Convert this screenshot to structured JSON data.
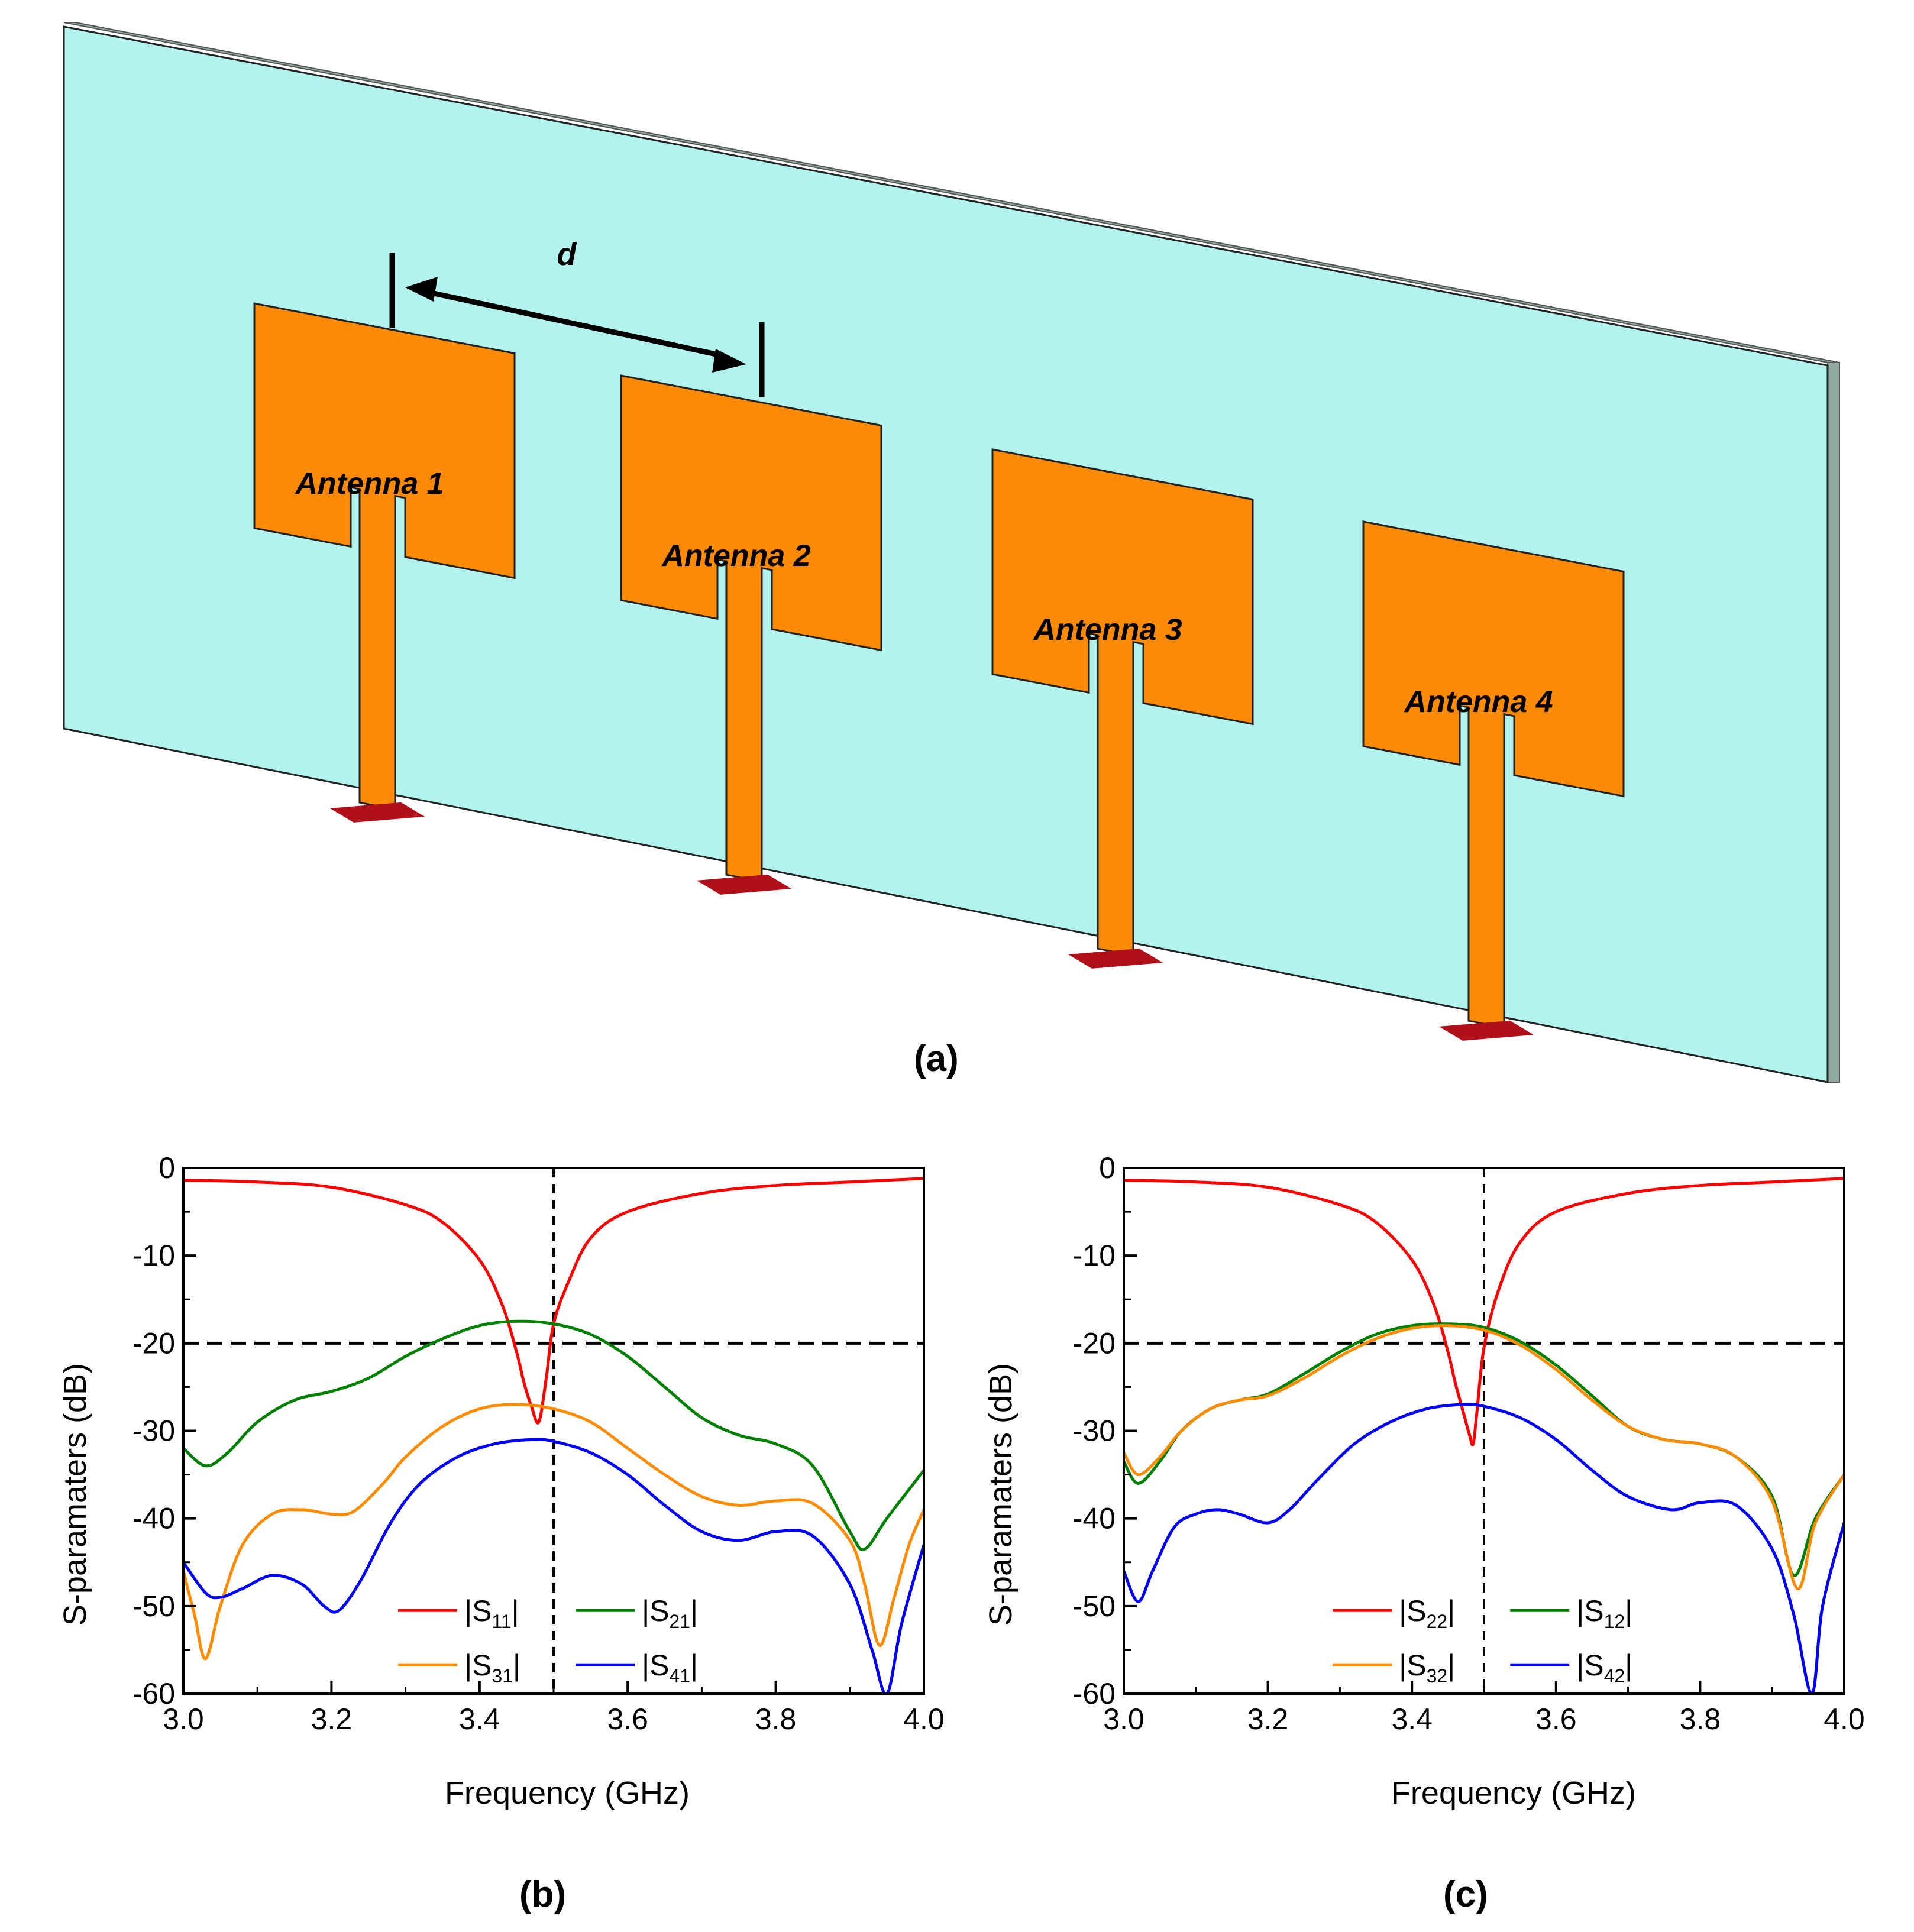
{
  "panel_a": {
    "label": "(a)",
    "dimension_label": "d",
    "antenna_labels": [
      "Antenna 1",
      "Antenna 2",
      "Antenna 3",
      "Antenna 4"
    ],
    "colors": {
      "substrate": "#b3f3ee",
      "patch": "#fb8b06",
      "port": "#b0101a"
    }
  },
  "panel_b_label": "(b)",
  "panel_c_label": "(c)",
  "chart_data": [
    {
      "type": "line",
      "panel": "b",
      "xlabel": "Frequency (GHz)",
      "ylabel": "S-paramaters (dB)",
      "xlim": [
        3.0,
        4.0
      ],
      "ylim": [
        -60,
        0
      ],
      "xticks": [
        "3.0",
        "3.2",
        "3.4",
        "3.6",
        "3.8",
        "4.0"
      ],
      "yticks": [
        "0",
        "-10",
        "-20",
        "-30",
        "-40",
        "-50",
        "-60"
      ],
      "reference_lines": {
        "vertical_x": 3.5,
        "horizontal_y": -20
      },
      "legend_position": "bottom-center",
      "series": [
        {
          "name": "|S11|",
          "base": "S",
          "sub": "11",
          "color": "#ff0000",
          "x": [
            3.0,
            3.1,
            3.2,
            3.3,
            3.35,
            3.4,
            3.43,
            3.45,
            3.46,
            3.47,
            3.48,
            3.49,
            3.5,
            3.52,
            3.55,
            3.6,
            3.7,
            3.8,
            3.9,
            4.0
          ],
          "y": [
            -1.4,
            -1.6,
            -2.2,
            -4.2,
            -6.2,
            -10.5,
            -15.5,
            -21.0,
            -24.5,
            -27.2,
            -29.0,
            -24.0,
            -17.8,
            -13.0,
            -8.0,
            -5.0,
            -2.9,
            -2.0,
            -1.6,
            -1.2
          ]
        },
        {
          "name": "|S21|",
          "base": "S",
          "sub": "21",
          "color": "#008000",
          "x": [
            3.0,
            3.03,
            3.06,
            3.1,
            3.15,
            3.2,
            3.25,
            3.3,
            3.35,
            3.4,
            3.45,
            3.5,
            3.55,
            3.6,
            3.65,
            3.7,
            3.75,
            3.8,
            3.85,
            3.9,
            3.92,
            3.95,
            4.0
          ],
          "y": [
            -32.0,
            -34.0,
            -32.5,
            -29.0,
            -26.5,
            -25.5,
            -24.0,
            -21.5,
            -19.5,
            -18.0,
            -17.5,
            -17.8,
            -19.0,
            -21.5,
            -25.0,
            -28.5,
            -30.5,
            -31.5,
            -34.0,
            -41.5,
            -43.5,
            -40.0,
            -34.5
          ]
        },
        {
          "name": "|S31|",
          "base": "S",
          "sub": "31",
          "color": "#ff8c00",
          "x": [
            3.0,
            3.015,
            3.03,
            3.05,
            3.08,
            3.12,
            3.16,
            3.2,
            3.23,
            3.27,
            3.3,
            3.35,
            3.4,
            3.45,
            3.5,
            3.55,
            3.6,
            3.65,
            3.7,
            3.75,
            3.8,
            3.85,
            3.9,
            3.92,
            3.94,
            3.96,
            3.98,
            4.0
          ],
          "y": [
            -46.0,
            -51.0,
            -56.0,
            -50.0,
            -43.0,
            -39.5,
            -39.0,
            -39.5,
            -39.2,
            -36.0,
            -33.0,
            -29.5,
            -27.5,
            -27.0,
            -27.5,
            -29.0,
            -32.0,
            -35.0,
            -37.5,
            -38.5,
            -38.0,
            -38.3,
            -42.5,
            -47.5,
            -54.5,
            -49.0,
            -43.0,
            -39.0
          ]
        },
        {
          "name": "|S41|",
          "base": "S",
          "sub": "41",
          "color": "#0000ff",
          "x": [
            3.0,
            3.03,
            3.05,
            3.08,
            3.12,
            3.16,
            3.19,
            3.21,
            3.24,
            3.28,
            3.32,
            3.37,
            3.42,
            3.47,
            3.5,
            3.55,
            3.6,
            3.65,
            3.7,
            3.75,
            3.8,
            3.85,
            3.9,
            3.93,
            3.95,
            3.97,
            4.0
          ],
          "y": [
            -45.0,
            -48.5,
            -49.0,
            -48.0,
            -46.5,
            -47.5,
            -50.0,
            -50.5,
            -47.0,
            -40.5,
            -36.0,
            -33.0,
            -31.5,
            -31.0,
            -31.2,
            -32.5,
            -35.0,
            -38.5,
            -41.5,
            -42.5,
            -41.5,
            -42.0,
            -47.5,
            -55.0,
            -60.0,
            -52.0,
            -43.0
          ]
        }
      ]
    },
    {
      "type": "line",
      "panel": "c",
      "xlabel": "Frequency (GHz)",
      "ylabel": "S-paramaters (dB)",
      "xlim": [
        3.0,
        4.0
      ],
      "ylim": [
        -60,
        0
      ],
      "xticks": [
        "3.0",
        "3.2",
        "3.4",
        "3.6",
        "3.8",
        "4.0"
      ],
      "yticks": [
        "0",
        "-10",
        "-20",
        "-30",
        "-40",
        "-50",
        "-60"
      ],
      "reference_lines": {
        "vertical_x": 3.5,
        "horizontal_y": -20
      },
      "legend_position": "bottom-center",
      "series": [
        {
          "name": "|S22|",
          "base": "S",
          "sub": "22",
          "color": "#ff0000",
          "x": [
            3.0,
            3.1,
            3.2,
            3.3,
            3.35,
            3.4,
            3.43,
            3.45,
            3.46,
            3.47,
            3.48,
            3.485,
            3.49,
            3.5,
            3.52,
            3.55,
            3.6,
            3.7,
            3.8,
            3.9,
            4.0
          ],
          "y": [
            -1.4,
            -1.6,
            -2.2,
            -4.2,
            -6.2,
            -10.5,
            -15.5,
            -21.0,
            -24.5,
            -27.5,
            -30.5,
            -31.5,
            -28.0,
            -20.5,
            -14.0,
            -8.5,
            -5.0,
            -2.9,
            -2.0,
            -1.6,
            -1.2
          ]
        },
        {
          "name": "|S12|",
          "base": "S",
          "sub": "12",
          "color": "#008000",
          "x": [
            3.0,
            3.02,
            3.05,
            3.08,
            3.12,
            3.16,
            3.2,
            3.25,
            3.3,
            3.35,
            3.4,
            3.45,
            3.5,
            3.55,
            3.6,
            3.65,
            3.7,
            3.75,
            3.8,
            3.85,
            3.9,
            3.93,
            3.96,
            4.0
          ],
          "y": [
            -33.5,
            -36.0,
            -33.5,
            -30.0,
            -27.5,
            -26.5,
            -25.8,
            -23.5,
            -21.0,
            -19.0,
            -18.0,
            -17.8,
            -18.2,
            -19.8,
            -22.5,
            -26.0,
            -29.5,
            -31.0,
            -31.5,
            -33.0,
            -37.5,
            -46.5,
            -40.0,
            -35.0
          ]
        },
        {
          "name": "|S32|",
          "base": "S",
          "sub": "32",
          "color": "#ff8c00",
          "x": [
            3.0,
            3.02,
            3.05,
            3.08,
            3.12,
            3.16,
            3.2,
            3.25,
            3.3,
            3.35,
            3.4,
            3.45,
            3.5,
            3.55,
            3.6,
            3.65,
            3.7,
            3.75,
            3.8,
            3.85,
            3.9,
            3.935,
            3.96,
            4.0
          ],
          "y": [
            -32.5,
            -35.0,
            -33.0,
            -30.0,
            -27.5,
            -26.5,
            -26.0,
            -24.0,
            -21.5,
            -19.5,
            -18.3,
            -18.0,
            -18.5,
            -20.2,
            -23.0,
            -26.5,
            -29.5,
            -31.0,
            -31.5,
            -33.0,
            -38.0,
            -48.0,
            -40.5,
            -35.0
          ]
        },
        {
          "name": "|S42|",
          "base": "S",
          "sub": "42",
          "color": "#0000ff",
          "x": [
            3.0,
            3.02,
            3.04,
            3.07,
            3.1,
            3.13,
            3.16,
            3.2,
            3.23,
            3.27,
            3.32,
            3.37,
            3.42,
            3.47,
            3.5,
            3.55,
            3.6,
            3.65,
            3.7,
            3.76,
            3.8,
            3.85,
            3.9,
            3.93,
            3.955,
            3.97,
            4.0
          ],
          "y": [
            -46.0,
            -49.5,
            -46.0,
            -41.0,
            -39.5,
            -39.0,
            -39.5,
            -40.5,
            -39.0,
            -35.5,
            -31.5,
            -29.0,
            -27.5,
            -27.0,
            -27.2,
            -28.5,
            -31.0,
            -34.5,
            -37.5,
            -39.0,
            -38.2,
            -38.5,
            -43.5,
            -51.0,
            -60.0,
            -50.0,
            -40.5
          ]
        }
      ]
    }
  ]
}
